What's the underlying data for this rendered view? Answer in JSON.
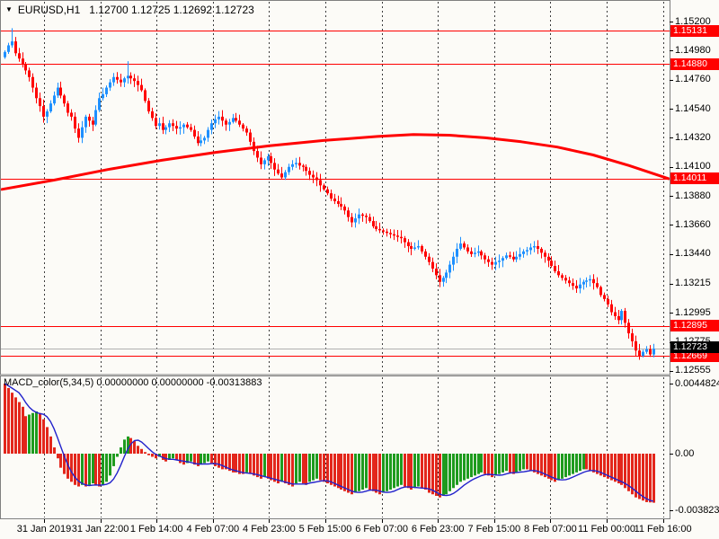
{
  "window": {
    "dropdown_icon": "▼",
    "symbol_period": "EURUSD,H1",
    "ohlc_display": "1.12700 1.12725 1.12692 1.12723"
  },
  "colors": {
    "background": "#FCFBF7",
    "border": "#808080",
    "grid": "#3c3c3c",
    "bull": "#1E90FF",
    "bear": "#FF0000",
    "price_line": "#FF0000",
    "ma": "#FF0000",
    "current_line": "#B0B0B0",
    "badge_red": "#FF0000",
    "badge_black": "#000000",
    "macd_up": "#1E9B1E",
    "macd_down": "#E3261B",
    "signal": "#2222CC"
  },
  "chart_data": [
    {
      "type": "candlestick",
      "title": "EURUSD,H1",
      "symbol": "EURUSD",
      "period": "H1",
      "current_bar": {
        "open": "1.12700",
        "high": "1.12725",
        "low": "1.12692",
        "close": "1.12723"
      },
      "x_labels": [
        "31 Jan 2019",
        "31 Jan 22:00",
        "1 Feb 14:00",
        "4 Feb 07:00",
        "4 Feb 23:00",
        "5 Feb 15:00",
        "6 Feb 07:00",
        "6 Feb 23:00",
        "7 Feb 15:00",
        "8 Feb 07:00",
        "11 Feb 00:00",
        "11 Feb 16:00"
      ],
      "y_axis_ticks": [
        "1.15200",
        "1.14980",
        "1.14760",
        "1.14540",
        "1.14320",
        "1.14100",
        "1.13880",
        "1.13660",
        "1.13440",
        "1.13215",
        "1.12995",
        "1.12775",
        "1.12555"
      ],
      "price_lines": [
        "1.15131",
        "1.14880",
        "1.14011",
        "1.12895",
        "1.12669"
      ],
      "current_price": "1.12723",
      "ylim": [
        1.12528,
        1.15241
      ],
      "first_open": 1.1493,
      "closes": [
        1.1497,
        1.1502,
        1.1505,
        1.1496,
        1.1492,
        1.1488,
        1.1483,
        1.1478,
        1.147,
        1.1462,
        1.1456,
        1.1448,
        1.1452,
        1.1458,
        1.1464,
        1.147,
        1.1464,
        1.1458,
        1.1451,
        1.1448,
        1.1439,
        1.1432,
        1.144,
        1.1448,
        1.1445,
        1.1442,
        1.1453,
        1.1462,
        1.1465,
        1.147,
        1.1474,
        1.1478,
        1.1476,
        1.1474,
        1.1477,
        1.1479,
        1.1477,
        1.1475,
        1.1472,
        1.1468,
        1.146,
        1.1452,
        1.1447,
        1.1441,
        1.1443,
        1.1438,
        1.144,
        1.1443,
        1.1441,
        1.1439,
        1.144,
        1.1442,
        1.144,
        1.1438,
        1.1433,
        1.1428,
        1.143,
        1.1432,
        1.1438,
        1.1443,
        1.1446,
        1.1448,
        1.1445,
        1.1442,
        1.1444,
        1.1447,
        1.1445,
        1.1442,
        1.1439,
        1.1436,
        1.1429,
        1.1422,
        1.1417,
        1.1412,
        1.1415,
        1.1418,
        1.1413,
        1.1408,
        1.1405,
        1.1402,
        1.1406,
        1.141,
        1.1412,
        1.1413,
        1.1411,
        1.141,
        1.1407,
        1.1404,
        1.1402,
        1.14,
        1.1396,
        1.1393,
        1.139,
        1.1386,
        1.1384,
        1.1382,
        1.138,
        1.1377,
        1.1372,
        1.1368,
        1.1371,
        1.1374,
        1.1373,
        1.1372,
        1.1369,
        1.1365,
        1.1363,
        1.1362,
        1.1361,
        1.136,
        1.1359,
        1.1358,
        1.1357,
        1.1356,
        1.1353,
        1.135,
        1.1348,
        1.1349,
        1.135,
        1.1346,
        1.1342,
        1.1338,
        1.1333,
        1.1328,
        1.1323,
        1.1326,
        1.133,
        1.1336,
        1.1342,
        1.1348,
        1.1352,
        1.1349,
        1.1346,
        1.1344,
        1.1345,
        1.1346,
        1.1343,
        1.134,
        1.1338,
        1.1336,
        1.1338,
        1.1339,
        1.1341,
        1.1343,
        1.1342,
        1.134,
        1.1342,
        1.1344,
        1.1346,
        1.1347,
        1.1349,
        1.135,
        1.1348,
        1.1345,
        1.1342,
        1.1339,
        1.1335,
        1.1331,
        1.1328,
        1.1326,
        1.1324,
        1.1322,
        1.132,
        1.1318,
        1.1321,
        1.1323,
        1.1324,
        1.1325,
        1.1322,
        1.1319,
        1.1313,
        1.131,
        1.1306,
        1.13,
        1.1297,
        1.1294,
        1.1301,
        1.1292,
        1.1284,
        1.1278,
        1.1271,
        1.1267,
        1.127,
        1.1272,
        1.1268,
        1.12723
      ],
      "spikes": {
        "high": {
          "2": 1.1515,
          "35": 1.149
        },
        "low": {
          "124": 1.1319,
          "181": 1.1264
        }
      },
      "ma_line": {
        "description": "red moving average",
        "anchors": [
          [
            2,
            1.1393
          ],
          [
            60,
            1.14
          ],
          [
            120,
            1.1408
          ],
          [
            180,
            1.1415
          ],
          [
            240,
            1.1421
          ],
          [
            300,
            1.1426
          ],
          [
            360,
            1.143
          ],
          [
            420,
            1.1433
          ],
          [
            460,
            1.14345
          ],
          [
            500,
            1.1434
          ],
          [
            540,
            1.1432
          ],
          [
            580,
            1.1429
          ],
          [
            620,
            1.1425
          ],
          [
            660,
            1.1419
          ],
          [
            700,
            1.1411
          ],
          [
            744,
            1.14011
          ]
        ]
      }
    },
    {
      "type": "bar",
      "name": "MACD_color(5,34,5)",
      "label": "MACD_color(5,34,5) 0.00000000 0.00000000 -0.00313883",
      "y_axis_ticks": [
        "0.0044824",
        "0.00",
        "-0.003823"
      ],
      "ylim": [
        -0.0038234,
        0.0044824
      ],
      "signal_period": 5,
      "values": [
        0.00448,
        0.0042,
        0.0039,
        0.0036,
        0.0033,
        0.003,
        0.0024,
        0.0025,
        0.0026,
        0.0027,
        0.0026,
        0.0022,
        0.0017,
        0.0011,
        0.0004,
        -0.0003,
        -0.0009,
        -0.0013,
        -0.0016,
        -0.0018,
        -0.002,
        -0.0021,
        -0.002,
        -0.0021,
        -0.002,
        -0.0019,
        -0.002,
        -0.0021,
        -0.002,
        -0.0018,
        -0.0014,
        -0.0008,
        -0.0002,
        0.0004,
        0.0009,
        0.0011,
        0.001,
        0.0008,
        0.0005,
        0.0003,
        0.0001,
        -0.0001,
        -0.0002,
        -0.0003,
        -0.0002,
        -0.0004,
        -0.0005,
        -0.0004,
        -0.0003,
        -0.0004,
        -0.0006,
        -0.0007,
        -0.0006,
        -0.0005,
        -0.0007,
        -0.0008,
        -0.0007,
        -0.0006,
        -0.0005,
        -0.0006,
        -0.0008,
        -0.0009,
        -0.001,
        -0.001,
        -0.0011,
        -0.0012,
        -0.0012,
        -0.0013,
        -0.0013,
        -0.0012,
        -0.0013,
        -0.0014,
        -0.0015,
        -0.0016,
        -0.0015,
        -0.0016,
        -0.0017,
        -0.0018,
        -0.0019,
        -0.0018,
        -0.0019,
        -0.002,
        -0.0021,
        -0.0019,
        -0.0018,
        -0.0019,
        -0.002,
        -0.0018,
        -0.0017,
        -0.0016,
        -0.0017,
        -0.0018,
        -0.0019,
        -0.002,
        -0.0021,
        -0.0022,
        -0.0023,
        -0.0024,
        -0.0025,
        -0.0026,
        -0.0025,
        -0.0024,
        -0.0023,
        -0.0022,
        -0.0023,
        -0.0024,
        -0.0025,
        -0.0026,
        -0.0025,
        -0.0024,
        -0.0023,
        -0.0022,
        -0.0021,
        -0.002,
        -0.0021,
        -0.0022,
        -0.0023,
        -0.0022,
        -0.0021,
        -0.0022,
        -0.0023,
        -0.0025,
        -0.0026,
        -0.0027,
        -0.0028,
        -0.0027,
        -0.0026,
        -0.0024,
        -0.0022,
        -0.002,
        -0.0018,
        -0.0017,
        -0.0016,
        -0.0015,
        -0.0014,
        -0.0013,
        -0.0012,
        -0.0013,
        -0.0014,
        -0.0015,
        -0.0014,
        -0.0013,
        -0.0012,
        -0.0011,
        -0.0012,
        -0.0013,
        -0.0012,
        -0.0011,
        -0.001,
        -0.001,
        -0.0011,
        -0.0012,
        -0.0013,
        -0.0014,
        -0.0015,
        -0.0016,
        -0.0017,
        -0.0018,
        -0.0017,
        -0.0016,
        -0.0015,
        -0.0014,
        -0.0013,
        -0.0012,
        -0.0011,
        -0.001,
        -0.001,
        -0.0011,
        -0.0012,
        -0.0013,
        -0.0014,
        -0.0015,
        -0.0016,
        -0.0017,
        -0.0018,
        -0.0019,
        -0.002,
        -0.0022,
        -0.0024,
        -0.0026,
        -0.0028,
        -0.0029,
        -0.003,
        -0.0031,
        -0.00312,
        -0.00313883
      ]
    }
  ]
}
